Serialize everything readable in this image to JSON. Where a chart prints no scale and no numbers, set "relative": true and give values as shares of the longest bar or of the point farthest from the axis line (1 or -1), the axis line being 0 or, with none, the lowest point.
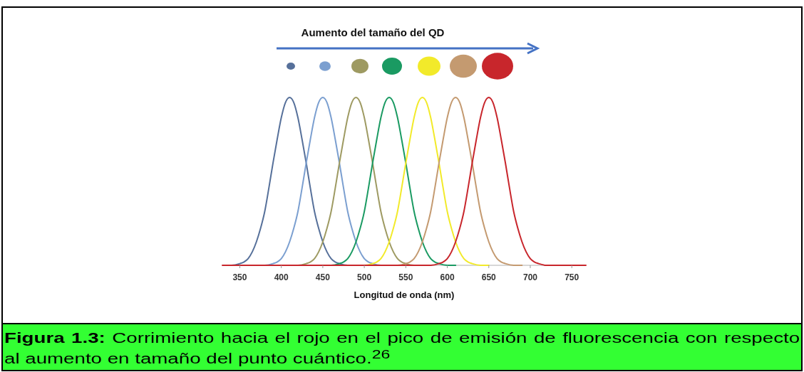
{
  "chart_data": {
    "type": "line",
    "relative": true,
    "title": "Aumento del tamaño del QD",
    "xlabel": "Longitud de onda (nm)",
    "xlim": [
      329,
      767
    ],
    "xticks": [
      350,
      400,
      450,
      500,
      550,
      600,
      650,
      700,
      750
    ],
    "annotations": [
      "Figura 1.3: Corrimiento hacia el rojo en el pico de emisión de fluorescencia con respecto al aumento en tamaño del punto cuántico.$^{26}$"
    ],
    "series": [
      {
        "color": "#56709a",
        "x": [
          330,
          340,
          350,
          355,
          360,
          365,
          370,
          375,
          380,
          385,
          390,
          395,
          400,
          405,
          410,
          415,
          420,
          425,
          430,
          435,
          440,
          445,
          450,
          455,
          460,
          465,
          470,
          480,
          490
        ],
        "values": [
          0,
          0,
          0.01,
          0.02,
          0.04,
          0.08,
          0.14,
          0.22,
          0.32,
          0.46,
          0.61,
          0.75,
          0.88,
          0.97,
          1,
          0.97,
          0.88,
          0.75,
          0.61,
          0.46,
          0.32,
          0.22,
          0.14,
          0.08,
          0.04,
          0.02,
          0.01,
          0,
          0
        ]
      },
      {
        "color": "#7b9fd0",
        "x": [
          370,
          380,
          390,
          395,
          400,
          405,
          410,
          415,
          420,
          425,
          430,
          435,
          440,
          445,
          450,
          455,
          460,
          465,
          470,
          475,
          480,
          485,
          490,
          495,
          500,
          505,
          510,
          520,
          530
        ],
        "values": [
          0,
          0,
          0.01,
          0.02,
          0.04,
          0.08,
          0.14,
          0.22,
          0.32,
          0.46,
          0.61,
          0.75,
          0.88,
          0.97,
          1,
          0.97,
          0.88,
          0.75,
          0.61,
          0.46,
          0.32,
          0.22,
          0.14,
          0.08,
          0.04,
          0.02,
          0.01,
          0,
          0
        ]
      },
      {
        "color": "#9e9a62",
        "x": [
          410,
          420,
          430,
          435,
          440,
          445,
          450,
          455,
          460,
          465,
          470,
          475,
          480,
          485,
          490,
          495,
          500,
          505,
          510,
          515,
          520,
          525,
          530,
          535,
          540,
          545,
          550,
          560,
          570
        ],
        "values": [
          0,
          0,
          0.01,
          0.02,
          0.04,
          0.08,
          0.14,
          0.22,
          0.32,
          0.46,
          0.61,
          0.75,
          0.88,
          0.97,
          1,
          0.97,
          0.88,
          0.75,
          0.61,
          0.46,
          0.32,
          0.22,
          0.14,
          0.08,
          0.04,
          0.02,
          0.01,
          0,
          0
        ]
      },
      {
        "color": "#1a9a62",
        "x": [
          450,
          460,
          470,
          475,
          480,
          485,
          490,
          495,
          500,
          505,
          510,
          515,
          520,
          525,
          530,
          535,
          540,
          545,
          550,
          555,
          560,
          565,
          570,
          575,
          580,
          585,
          590,
          600,
          610
        ],
        "values": [
          0,
          0,
          0.01,
          0.02,
          0.04,
          0.08,
          0.14,
          0.22,
          0.32,
          0.46,
          0.61,
          0.75,
          0.88,
          0.97,
          1,
          0.97,
          0.88,
          0.75,
          0.61,
          0.46,
          0.32,
          0.22,
          0.14,
          0.08,
          0.04,
          0.02,
          0.01,
          0,
          0
        ]
      },
      {
        "color": "#f2ea2a",
        "x": [
          490,
          500,
          510,
          515,
          520,
          525,
          530,
          535,
          540,
          545,
          550,
          555,
          560,
          565,
          570,
          575,
          580,
          585,
          590,
          595,
          600,
          605,
          610,
          615,
          620,
          625,
          630,
          640,
          650
        ],
        "values": [
          0,
          0,
          0.01,
          0.02,
          0.04,
          0.08,
          0.14,
          0.22,
          0.32,
          0.46,
          0.61,
          0.75,
          0.88,
          0.97,
          1,
          0.97,
          0.88,
          0.75,
          0.61,
          0.46,
          0.32,
          0.22,
          0.14,
          0.08,
          0.04,
          0.02,
          0.01,
          0,
          0
        ]
      },
      {
        "color": "#c49a70",
        "x": [
          530,
          540,
          550,
          555,
          560,
          565,
          570,
          575,
          580,
          585,
          590,
          595,
          600,
          605,
          610,
          615,
          620,
          625,
          630,
          635,
          640,
          645,
          650,
          655,
          660,
          665,
          670,
          680,
          690
        ],
        "values": [
          0,
          0,
          0.01,
          0.02,
          0.04,
          0.08,
          0.14,
          0.22,
          0.32,
          0.46,
          0.61,
          0.75,
          0.88,
          0.97,
          1,
          0.97,
          0.88,
          0.75,
          0.61,
          0.46,
          0.32,
          0.22,
          0.14,
          0.08,
          0.04,
          0.02,
          0.01,
          0,
          0
        ]
      },
      {
        "color": "#c8262c",
        "x": [
          329,
          570,
          580,
          590,
          595,
          600,
          605,
          610,
          615,
          620,
          625,
          630,
          635,
          640,
          645,
          650,
          655,
          660,
          665,
          670,
          675,
          680,
          685,
          690,
          695,
          700,
          705,
          710,
          720,
          730,
          767
        ],
        "values": [
          0,
          0,
          0,
          0.01,
          0.02,
          0.04,
          0.08,
          0.14,
          0.22,
          0.32,
          0.46,
          0.61,
          0.75,
          0.88,
          0.97,
          1,
          0.97,
          0.88,
          0.75,
          0.61,
          0.46,
          0.32,
          0.22,
          0.14,
          0.08,
          0.04,
          0.02,
          0.01,
          0,
          0,
          0
        ]
      }
    ]
  }
}
